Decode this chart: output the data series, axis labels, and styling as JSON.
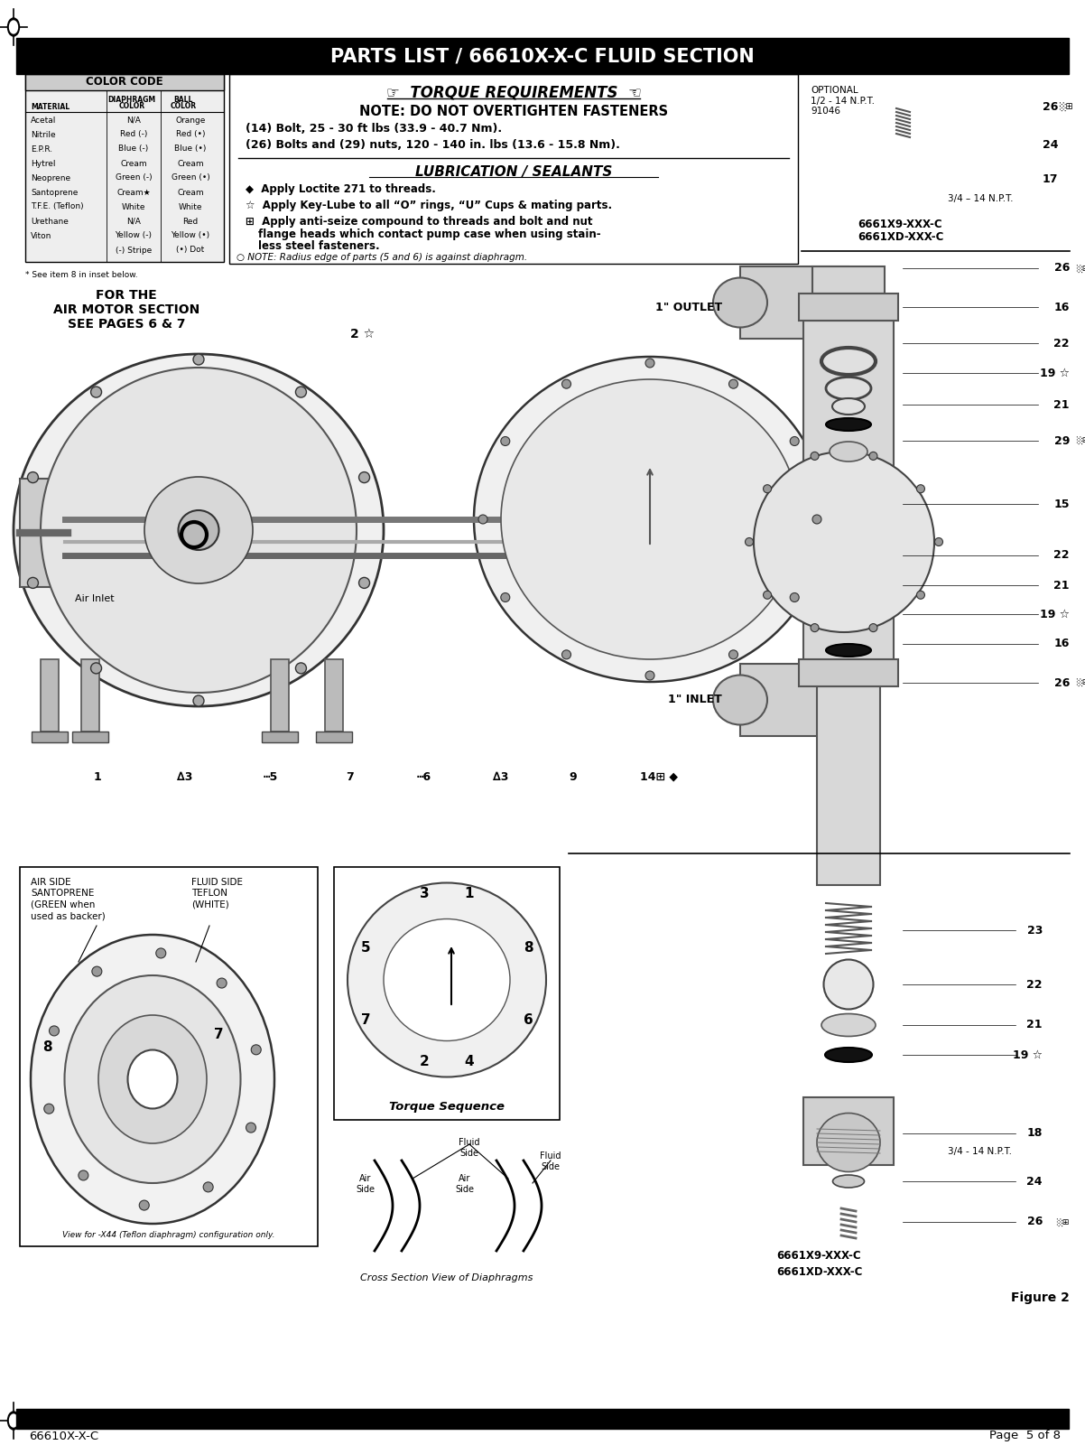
{
  "title": "PARTS LIST / 66610X-X-C FLUID SECTION",
  "footer_left": "66610X-X-C",
  "footer_right": "Page  5 of 8",
  "header_bg": "#000000",
  "header_text_color": "#ffffff",
  "page_bg": "#ffffff",
  "color_code_title": "COLOR CODE",
  "color_code_rows": [
    [
      "Acetal",
      "N/A",
      "Orange"
    ],
    [
      "Nitrile",
      "Red (-)",
      "Red (•)"
    ],
    [
      "E.P.R.",
      "Blue (-)",
      "Blue (•)"
    ],
    [
      "Hytrel",
      "Cream",
      "Cream"
    ],
    [
      "Neoprene",
      "Green (-)",
      "Green (•)"
    ],
    [
      "Santoprene",
      "Cream★",
      "Cream"
    ],
    [
      "T.F.E. (Teflon)",
      "White",
      "White"
    ],
    [
      "Urethane",
      "N/A",
      "Red"
    ],
    [
      "Viton",
      "Yellow (-)",
      "Yellow (•)"
    ],
    [
      "",
      "(-) Stripe",
      "(•) Dot"
    ]
  ],
  "asterisk_note": "* See item 8 in inset below.",
  "for_air_motor": "FOR THE\nAIR MOTOR SECTION\nSEE PAGES 6 & 7",
  "torque_title": "TORQUE REQUIREMENTS",
  "torque_note": "NOTE: DO NOT OVERTIGHTEN FASTENERS",
  "torque_line1": "(14) Bolt, 25 - 30 ft lbs (33.9 - 40.7 Nm).",
  "torque_line2": "(26) Bolts and (29) nuts, 120 - 140 in. lbs (13.6 - 15.8 Nm).",
  "lub_title": "LUBRICATION / SEALANTS",
  "note_radius": "○ NOTE: Radius edge of parts (5 and 6) is against diaphragm.",
  "optional_text": "OPTIONAL\n1/2 - 14 N.P.T.\n91046",
  "label_34npt_top": "3/4 – 14 N.P.T.",
  "label_model1_top": "6661X9-XXX-C",
  "label_model2_top": "6661XD-XXX-C",
  "label_outlet": "1\" OUTLET",
  "label_inlet": "1\" INLET",
  "label_air_inlet": "Air Inlet",
  "torque_seq_title": "Torque Sequence",
  "cross_section_title": "Cross Section View of Diaphragms",
  "figure2": "Figure 2",
  "model_bottom1": "6661X9-XXX-C",
  "model_bottom2": "6661XD-XXX-C",
  "label_34npt_bot": "3/4 - 14 N.P.T.",
  "view_caption": "View for -X44 (Teflon diaphragm) configuration only.",
  "inset_left_label": "AIR SIDE\nSANTOPRENE\n(GREEN when\nused as backer)",
  "inset_right_label": "FLUID SIDE\nTEFLON\n(WHITE)"
}
